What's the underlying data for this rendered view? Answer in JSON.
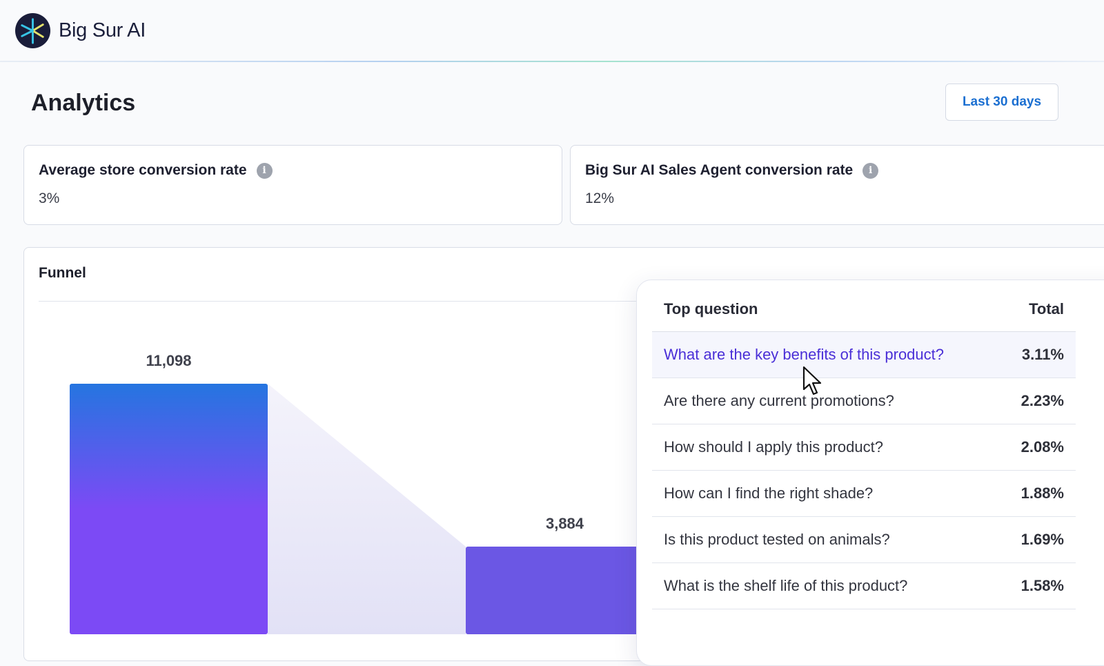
{
  "app": {
    "brand": "Big Sur AI",
    "logo_icon": "big-sur-star-icon"
  },
  "page": {
    "title": "Analytics",
    "date_range_button": "Last 30 days"
  },
  "metrics": [
    {
      "label": "Average store conversion rate",
      "value": "3%",
      "info_icon": "info-icon"
    },
    {
      "label": "Big Sur AI Sales Agent conversion rate",
      "value": "12%",
      "info_icon": "info-icon"
    }
  ],
  "funnel": {
    "title": "Funnel"
  },
  "chart_data": {
    "type": "bar",
    "title": "Funnel",
    "values": [
      11098,
      3884
    ],
    "data_labels": [
      "11,098",
      "3,884"
    ],
    "colors": {
      "bar_top": "#2575e0",
      "bar_bottom": "#7c4af5",
      "bar2": "#6b57e4",
      "connector": "#e3e2f6"
    }
  },
  "top_questions": {
    "header_question": "Top question",
    "header_total": "Total",
    "rows": [
      {
        "question": "What are the key benefits of this product?",
        "total": "3.11%",
        "active": true
      },
      {
        "question": "Are there any current promotions?",
        "total": "2.23%"
      },
      {
        "question": "How should I apply this product?",
        "total": "2.08%"
      },
      {
        "question": "How can I find the right shade?",
        "total": "1.88%"
      },
      {
        "question": "Is this product tested on animals?",
        "total": "1.69%"
      },
      {
        "question": "What is the shelf life of this product?",
        "total": "1.58%"
      }
    ]
  },
  "accent_colors": {
    "link": "#1b6fd1",
    "active_question": "#4a2fd7"
  },
  "cursor": "mouse-pointer-icon"
}
